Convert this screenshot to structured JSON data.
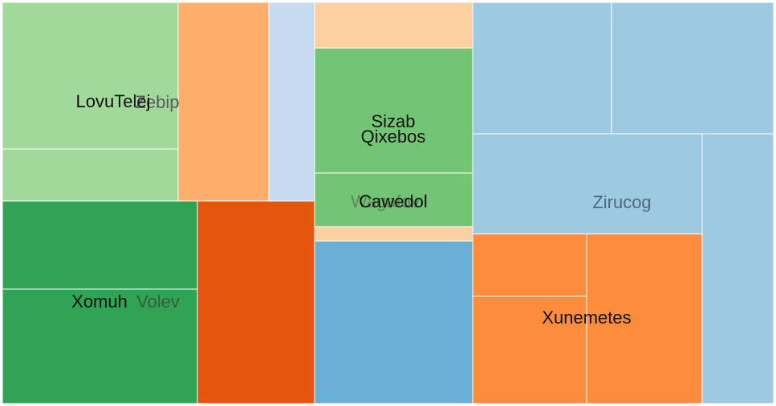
{
  "chart_data": {
    "type": "treemap",
    "title": "",
    "tiles": [
      {
        "id": "a1",
        "group": "LovuTelej",
        "value": 5.6,
        "color": "#a1d99b"
      },
      {
        "id": "a2",
        "group": "LovuTelej",
        "value": 1.8,
        "color": "#a1d99b"
      },
      {
        "id": "a3",
        "group": "LovuTelej",
        "value": 3.6,
        "color": "#fdae6b"
      },
      {
        "id": "a4",
        "group": "LovuTelej",
        "value": 1.9,
        "color": "#c6dbef"
      },
      {
        "id": "b1",
        "group": "XomuhVolev",
        "value": 3.7,
        "color": "#31a354"
      },
      {
        "id": "b2",
        "group": "XomuhVolev",
        "value": 4.9,
        "color": "#31a354"
      },
      {
        "id": "b3",
        "group": "XomuhVolev",
        "value": 4.9,
        "color": "#e6550d"
      },
      {
        "id": "c1",
        "group": "Sizab",
        "value": 1.5,
        "color": "#fdd0a2"
      },
      {
        "id": "c2",
        "group": "Sizab",
        "value": 4.1,
        "color": "#74c476"
      },
      {
        "id": "c3",
        "group": "Cawedol",
        "value": 1.7,
        "color": "#74c476"
      },
      {
        "id": "c4",
        "group": "Cawedol",
        "value": 0.5,
        "color": "#fdd0a2"
      },
      {
        "id": "c5",
        "group": "Cawedol",
        "value": 5.3,
        "color": "#6baed6"
      },
      {
        "id": "d1",
        "group": "Zirucog",
        "value": 4.7,
        "color": "#9ecae1"
      },
      {
        "id": "d2",
        "group": "Zirucog",
        "value": 4.7,
        "color": "#9ecae1"
      },
      {
        "id": "d3",
        "group": "Zirucog",
        "value": 4.6,
        "color": "#9ecae1"
      },
      {
        "id": "d4",
        "group": "Zirucog",
        "value": 4.8,
        "color": "#9ecae1"
      },
      {
        "id": "e1",
        "group": "Xunemetes",
        "value": 1.8,
        "color": "#fd8d3c"
      },
      {
        "id": "e2",
        "group": "Xunemetes",
        "value": 2.0,
        "color": "#fd8d3c"
      },
      {
        "id": "e3",
        "group": "Xunemetes",
        "value": 4.9,
        "color": "#fd8d3c"
      }
    ],
    "labels": [
      {
        "text": "Zebip",
        "color": "#5a5a5a"
      },
      {
        "text": "LovuTelej",
        "color": "#111111"
      },
      {
        "text": "Volev",
        "color": "#3a5a3a"
      },
      {
        "text": "Xomuh",
        "color": "#111111"
      },
      {
        "text": "Sizab",
        "color": "#111111"
      },
      {
        "text": "Qixebos",
        "color": "#111111"
      },
      {
        "text": "Wagafov",
        "color": "#5a8a5a"
      },
      {
        "text": "Cawedol",
        "color": "#111111"
      },
      {
        "text": "Zirucog",
        "color": "#4a6a80"
      },
      {
        "text": "Xunemetes",
        "color": "#111111"
      }
    ]
  }
}
